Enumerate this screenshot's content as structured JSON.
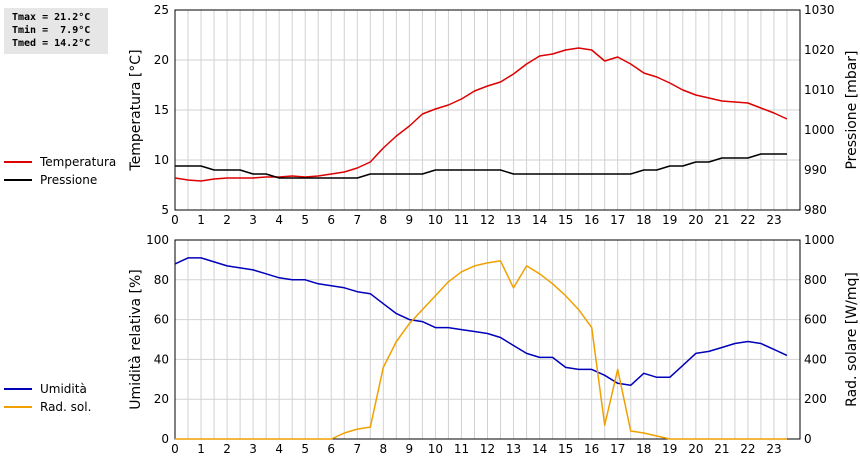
{
  "stats": {
    "tmax": "Tmax = 21.2°C",
    "tmin": "Tmin =  7.9°C",
    "tmed": "Tmed = 14.2°C"
  },
  "legend_top": [
    {
      "label": "Temperatura",
      "color": "#dd0000"
    },
    {
      "label": "Pressione",
      "color": "#000000"
    }
  ],
  "legend_bottom": [
    {
      "label": "Umidità",
      "color": "#0000bb"
    },
    {
      "label": "Rad. sol.",
      "color": "#f0a000"
    }
  ],
  "chart_data": [
    {
      "type": "line",
      "xlim": [
        0,
        24
      ],
      "x_ticks": [
        0,
        1,
        2,
        3,
        4,
        5,
        6,
        7,
        8,
        9,
        10,
        11,
        12,
        13,
        14,
        15,
        16,
        17,
        18,
        19,
        20,
        21,
        22,
        23
      ],
      "ylabel_left": "Temperatura [°C]",
      "ylabel_right": "Pressione [mbar]",
      "ylim_left": [
        5,
        25
      ],
      "yticks_left": [
        5,
        10,
        15,
        20,
        25
      ],
      "ylim_right": [
        980,
        1030
      ],
      "yticks_right": [
        980,
        990,
        1000,
        1010,
        1020,
        1030
      ],
      "grid": true,
      "series": [
        {
          "name": "Temperatura",
          "axis": "left",
          "color": "#dd0000",
          "x": [
            0,
            0.5,
            1,
            1.5,
            2,
            2.5,
            3,
            3.5,
            4,
            4.5,
            5,
            5.5,
            6,
            6.5,
            7,
            7.5,
            8,
            8.5,
            9,
            9.5,
            10,
            10.5,
            11,
            11.5,
            12,
            12.5,
            13,
            13.5,
            14,
            14.5,
            15,
            15.5,
            16,
            16.5,
            17,
            17.5,
            18,
            18.5,
            19,
            19.5,
            20,
            20.5,
            21,
            21.5,
            22,
            22.5,
            23,
            23.5
          ],
          "y": [
            8.2,
            8.0,
            7.9,
            8.1,
            8.2,
            8.2,
            8.2,
            8.3,
            8.3,
            8.4,
            8.3,
            8.4,
            8.6,
            8.8,
            9.2,
            9.8,
            11.2,
            12.4,
            13.4,
            14.6,
            15.1,
            15.5,
            16.1,
            16.9,
            17.4,
            17.8,
            18.6,
            19.6,
            20.4,
            20.6,
            21.0,
            21.2,
            21.0,
            19.9,
            20.3,
            19.6,
            18.7,
            18.3,
            17.7,
            17.0,
            16.5,
            16.2,
            15.9,
            15.8,
            15.7,
            15.2,
            14.7,
            14.1
          ]
        },
        {
          "name": "Pressione",
          "axis": "right",
          "color": "#000000",
          "x": [
            0,
            0.5,
            1,
            1.5,
            2,
            2.5,
            3,
            3.5,
            4,
            4.5,
            5,
            5.5,
            6,
            6.5,
            7,
            7.5,
            8,
            8.5,
            9,
            9.5,
            10,
            10.5,
            11,
            11.5,
            12,
            12.5,
            13,
            13.5,
            14,
            14.5,
            15,
            15.5,
            16,
            16.5,
            17,
            17.5,
            18,
            18.5,
            19,
            19.5,
            20,
            20.5,
            21,
            21.5,
            22,
            22.5,
            23,
            23.5
          ],
          "y": [
            991,
            991,
            991,
            990,
            990,
            990,
            989,
            989,
            988,
            988,
            988,
            988,
            988,
            988,
            988,
            989,
            989,
            989,
            989,
            989,
            990,
            990,
            990,
            990,
            990,
            990,
            989,
            989,
            989,
            989,
            989,
            989,
            989,
            989,
            989,
            989,
            990,
            990,
            991,
            991,
            992,
            992,
            993,
            993,
            993,
            994,
            994,
            994
          ]
        }
      ]
    },
    {
      "type": "line",
      "xlim": [
        0,
        24
      ],
      "x_ticks": [
        0,
        1,
        2,
        3,
        4,
        5,
        6,
        7,
        8,
        9,
        10,
        11,
        12,
        13,
        14,
        15,
        16,
        17,
        18,
        19,
        20,
        21,
        22,
        23
      ],
      "ylabel_left": "Umidità relativa [%]",
      "ylabel_right": "Rad. solare [W/mq]",
      "ylim_left": [
        0,
        100
      ],
      "yticks_left": [
        0,
        20,
        40,
        60,
        80,
        100
      ],
      "ylim_right": [
        0,
        1000
      ],
      "yticks_right": [
        0,
        200,
        400,
        600,
        800,
        1000
      ],
      "grid": true,
      "series": [
        {
          "name": "Umidità",
          "axis": "left",
          "color": "#0000bb",
          "x": [
            0,
            0.5,
            1,
            1.5,
            2,
            2.5,
            3,
            3.5,
            4,
            4.5,
            5,
            5.5,
            6,
            6.5,
            7,
            7.5,
            8,
            8.5,
            9,
            9.5,
            10,
            10.5,
            11,
            11.5,
            12,
            12.5,
            13,
            13.5,
            14,
            14.5,
            15,
            15.5,
            16,
            16.5,
            17,
            17.5,
            18,
            18.5,
            19,
            19.5,
            20,
            20.5,
            21,
            21.5,
            22,
            22.5,
            23,
            23.5
          ],
          "y": [
            88,
            91,
            91,
            89,
            87,
            86,
            85,
            83,
            81,
            80,
            80,
            78,
            77,
            76,
            74,
            73,
            68,
            63,
            60,
            59,
            56,
            56,
            55,
            54,
            53,
            51,
            47,
            43,
            41,
            41,
            36,
            35,
            35,
            32,
            28,
            27,
            33,
            31,
            31,
            37,
            43,
            44,
            46,
            48,
            49,
            48,
            45,
            42
          ]
        },
        {
          "name": "Rad. sol.",
          "axis": "right",
          "color": "#f0a000",
          "x": [
            0,
            0.5,
            1,
            1.5,
            2,
            2.5,
            3,
            3.5,
            4,
            4.5,
            5,
            5.5,
            6,
            6.5,
            7,
            7.5,
            8,
            8.5,
            9,
            9.5,
            10,
            10.5,
            11,
            11.5,
            12,
            12.5,
            13,
            13.5,
            14,
            14.5,
            15,
            15.5,
            16,
            16.5,
            17,
            17.5,
            18,
            18.5,
            19,
            19.5,
            20,
            20.5,
            21,
            21.5,
            22,
            22.5,
            23,
            23.5
          ],
          "y": [
            0,
            0,
            0,
            0,
            0,
            0,
            0,
            0,
            0,
            0,
            0,
            0,
            0,
            30,
            50,
            60,
            360,
            490,
            580,
            650,
            720,
            790,
            840,
            870,
            885,
            895,
            760,
            870,
            830,
            780,
            720,
            650,
            560,
            70,
            350,
            40,
            30,
            15,
            0,
            0,
            0,
            0,
            0,
            0,
            0,
            0,
            0,
            0
          ]
        }
      ]
    }
  ]
}
